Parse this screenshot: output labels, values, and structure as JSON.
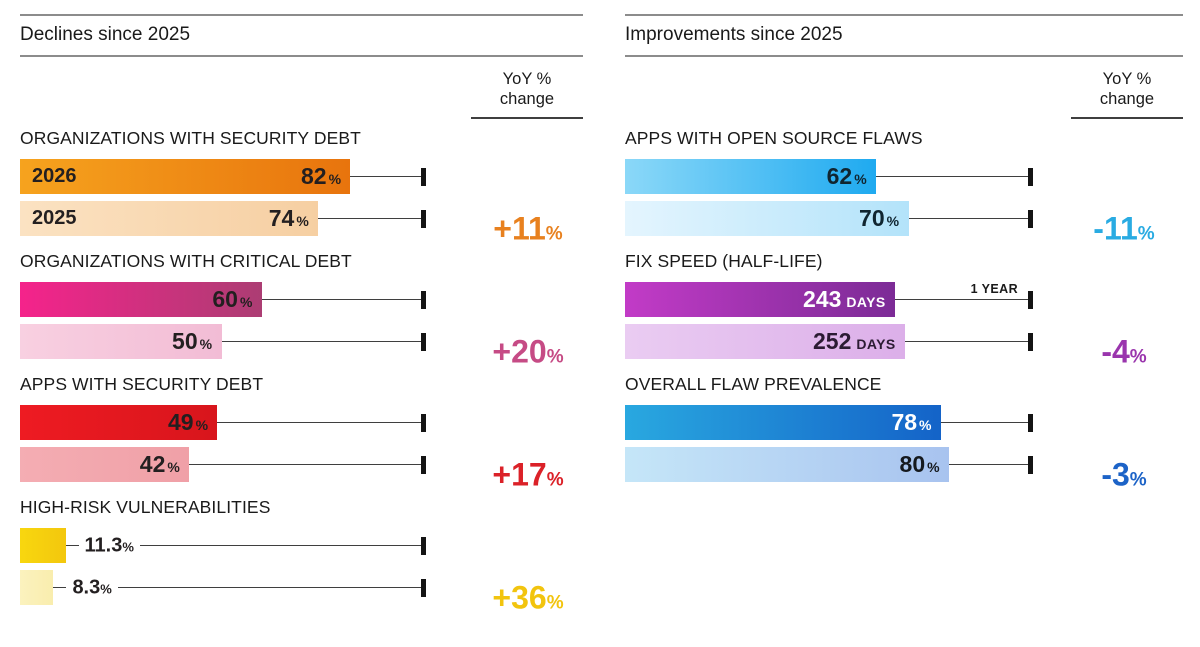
{
  "chart_data": {
    "type": "bar",
    "orientation": "horizontal",
    "grid": false,
    "panels": [
      {
        "title": "Declines since 2025",
        "yoy_header_line1": "YoY %",
        "yoy_header_line2": "change",
        "axis_max": 100,
        "axis_unit": "%",
        "groups": [
          {
            "title": "ORGANIZATIONS WITH SECURITY DEBT",
            "scale_max": 100,
            "yoy": {
              "text": "+11",
              "suffix": "%",
              "color": "#E8811F"
            },
            "bars": [
              {
                "label": "2026",
                "value": 82,
                "value_text": "82",
                "suffix": "%",
                "inside": true,
                "colors": [
                  "#F6A31E",
                  "#E8740D"
                ],
                "text_color": "#231F20"
              },
              {
                "label": "2025",
                "value": 74,
                "value_text": "74",
                "suffix": "%",
                "inside": true,
                "colors": [
                  "#FBE2C2",
                  "#F6CFA2"
                ],
                "text_color": "#231F20"
              }
            ]
          },
          {
            "title": "ORGANIZATIONS WITH CRITICAL DEBT",
            "scale_max": 100,
            "yoy": {
              "text": "+20",
              "suffix": "%",
              "color": "#C64B85"
            },
            "bars": [
              {
                "label": "",
                "value": 60,
                "value_text": "60",
                "suffix": "%",
                "inside": true,
                "colors": [
                  "#F5238B",
                  "#AC3D73"
                ],
                "text_color": "#231F20"
              },
              {
                "label": "",
                "value": 50,
                "value_text": "50",
                "suffix": "%",
                "inside": true,
                "colors": [
                  "#F8D0E1",
                  "#F2BCD5"
                ],
                "text_color": "#231F20"
              }
            ]
          },
          {
            "title": "APPS WITH SECURITY DEBT",
            "scale_max": 100,
            "yoy": {
              "text": "+17",
              "suffix": "%",
              "color": "#DB2128"
            },
            "bars": [
              {
                "label": "",
                "value": 49,
                "value_text": "49",
                "suffix": "%",
                "inside": true,
                "colors": [
                  "#EE1B22",
                  "#D8151C"
                ],
                "text_color": "#231F20"
              },
              {
                "label": "",
                "value": 42,
                "value_text": "42",
                "suffix": "%",
                "inside": true,
                "colors": [
                  "#F4ADB3",
                  "#F0A0A7"
                ],
                "text_color": "#231F20"
              }
            ]
          },
          {
            "title": "HIGH-RISK VULNERABILITIES",
            "scale_max": 100,
            "yoy": {
              "text": "+36",
              "suffix": "%",
              "color": "#F2C40E"
            },
            "bars": [
              {
                "label": "",
                "value": 11.3,
                "value_text": "11.3",
                "suffix": "%",
                "inside": false,
                "colors": [
                  "#F8D70F",
                  "#F3C70D"
                ],
                "text_color": "#231F20"
              },
              {
                "label": "",
                "value": 8.3,
                "value_text": "8.3",
                "suffix": "%",
                "inside": false,
                "colors": [
                  "#FBF2BE",
                  "#F9EDAE"
                ],
                "text_color": "#231F20"
              }
            ]
          }
        ]
      },
      {
        "title": "Improvements since 2025",
        "yoy_header_line1": "YoY %",
        "yoy_header_line2": "change",
        "axis_max": 100,
        "axis_unit": "%",
        "groups": [
          {
            "title": "APPS WITH OPEN SOURCE FLAWS",
            "scale_max": 100,
            "yoy": {
              "text": "-11",
              "suffix": "%",
              "color": "#29ABE2"
            },
            "bars": [
              {
                "label": "",
                "value": 62,
                "value_text": "62",
                "suffix": "%",
                "inside": true,
                "colors": [
                  "#8BD8F8",
                  "#1FAAF0"
                ],
                "text_color": "#102530"
              },
              {
                "label": "",
                "value": 70,
                "value_text": "70",
                "suffix": "%",
                "inside": true,
                "colors": [
                  "#E4F5FE",
                  "#B3E3FA"
                ],
                "text_color": "#102530"
              }
            ]
          },
          {
            "title": "FIX SPEED (HALF-LIFE)",
            "scale_max": 365,
            "yoy": {
              "text": "-4",
              "suffix": "%",
              "color": "#9A35AD"
            },
            "bars": [
              {
                "label": "",
                "value": 243,
                "value_text": "243",
                "suffix": "DAYS",
                "inside": true,
                "colors": [
                  "#C23BC7",
                  "#7C2B96"
                ],
                "text_color": "#FFFFFF",
                "annotation": "1 YEAR"
              },
              {
                "label": "",
                "value": 252,
                "value_text": "252",
                "suffix": "DAYS",
                "inside": true,
                "colors": [
                  "#EACCF2",
                  "#DCAFE9"
                ],
                "text_color": "#2B1B33"
              }
            ]
          },
          {
            "title": "OVERALL FLAW PREVALENCE",
            "scale_max": 100,
            "yoy": {
              "text": "-3",
              "suffix": "%",
              "color": "#1C63C7"
            },
            "bars": [
              {
                "label": "",
                "value": 78,
                "value_text": "78",
                "suffix": "%",
                "inside": true,
                "colors": [
                  "#29A8E0",
                  "#1463C8"
                ],
                "text_color": "#FFFFFF"
              },
              {
                "label": "",
                "value": 80,
                "value_text": "80",
                "suffix": "%",
                "inside": true,
                "colors": [
                  "#C5E6F8",
                  "#A8C3EF"
                ],
                "text_color": "#15191E"
              }
            ]
          }
        ]
      }
    ]
  }
}
